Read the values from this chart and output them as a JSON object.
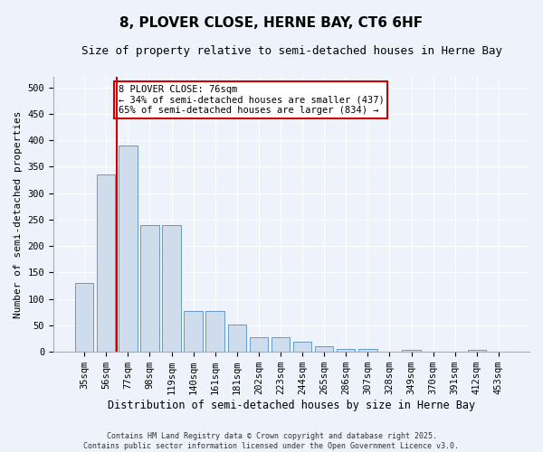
{
  "title": "8, PLOVER CLOSE, HERNE BAY, CT6 6HF",
  "subtitle": "Size of property relative to semi-detached houses in Herne Bay",
  "xlabel": "Distribution of semi-detached houses by size in Herne Bay",
  "ylabel": "Number of semi-detached properties",
  "categories": [
    "35sqm",
    "56sqm",
    "77sqm",
    "98sqm",
    "119sqm",
    "140sqm",
    "161sqm",
    "181sqm",
    "202sqm",
    "223sqm",
    "244sqm",
    "265sqm",
    "286sqm",
    "307sqm",
    "328sqm",
    "349sqm",
    "370sqm",
    "391sqm",
    "412sqm",
    "453sqm"
  ],
  "values": [
    130,
    335,
    390,
    240,
    240,
    77,
    77,
    51,
    27,
    27,
    20,
    10,
    5,
    5,
    0,
    4,
    0,
    0,
    4,
    0
  ],
  "bar_color": "#cfdcec",
  "bar_edge_color": "#6699cc",
  "vline_color": "#cc0000",
  "vline_x": 1.5,
  "annotation_line1": "8 PLOVER CLOSE: 76sqm",
  "annotation_line2": "← 34% of semi-detached houses are smaller (437)",
  "annotation_line3": "65% of semi-detached houses are larger (834) →",
  "annotation_box_color": "#cc0000",
  "ylim": [
    0,
    520
  ],
  "yticks": [
    0,
    50,
    100,
    150,
    200,
    250,
    300,
    350,
    400,
    450,
    500
  ],
  "footer_line1": "Contains HM Land Registry data © Crown copyright and database right 2025.",
  "footer_line2": "Contains public sector information licensed under the Open Government Licence v3.0.",
  "background_color": "#eef2fa",
  "title_fontsize": 11,
  "subtitle_fontsize": 9,
  "tick_fontsize": 7.5,
  "ylabel_fontsize": 8,
  "xlabel_fontsize": 8.5,
  "footer_fontsize": 6,
  "annotation_fontsize": 7.5
}
